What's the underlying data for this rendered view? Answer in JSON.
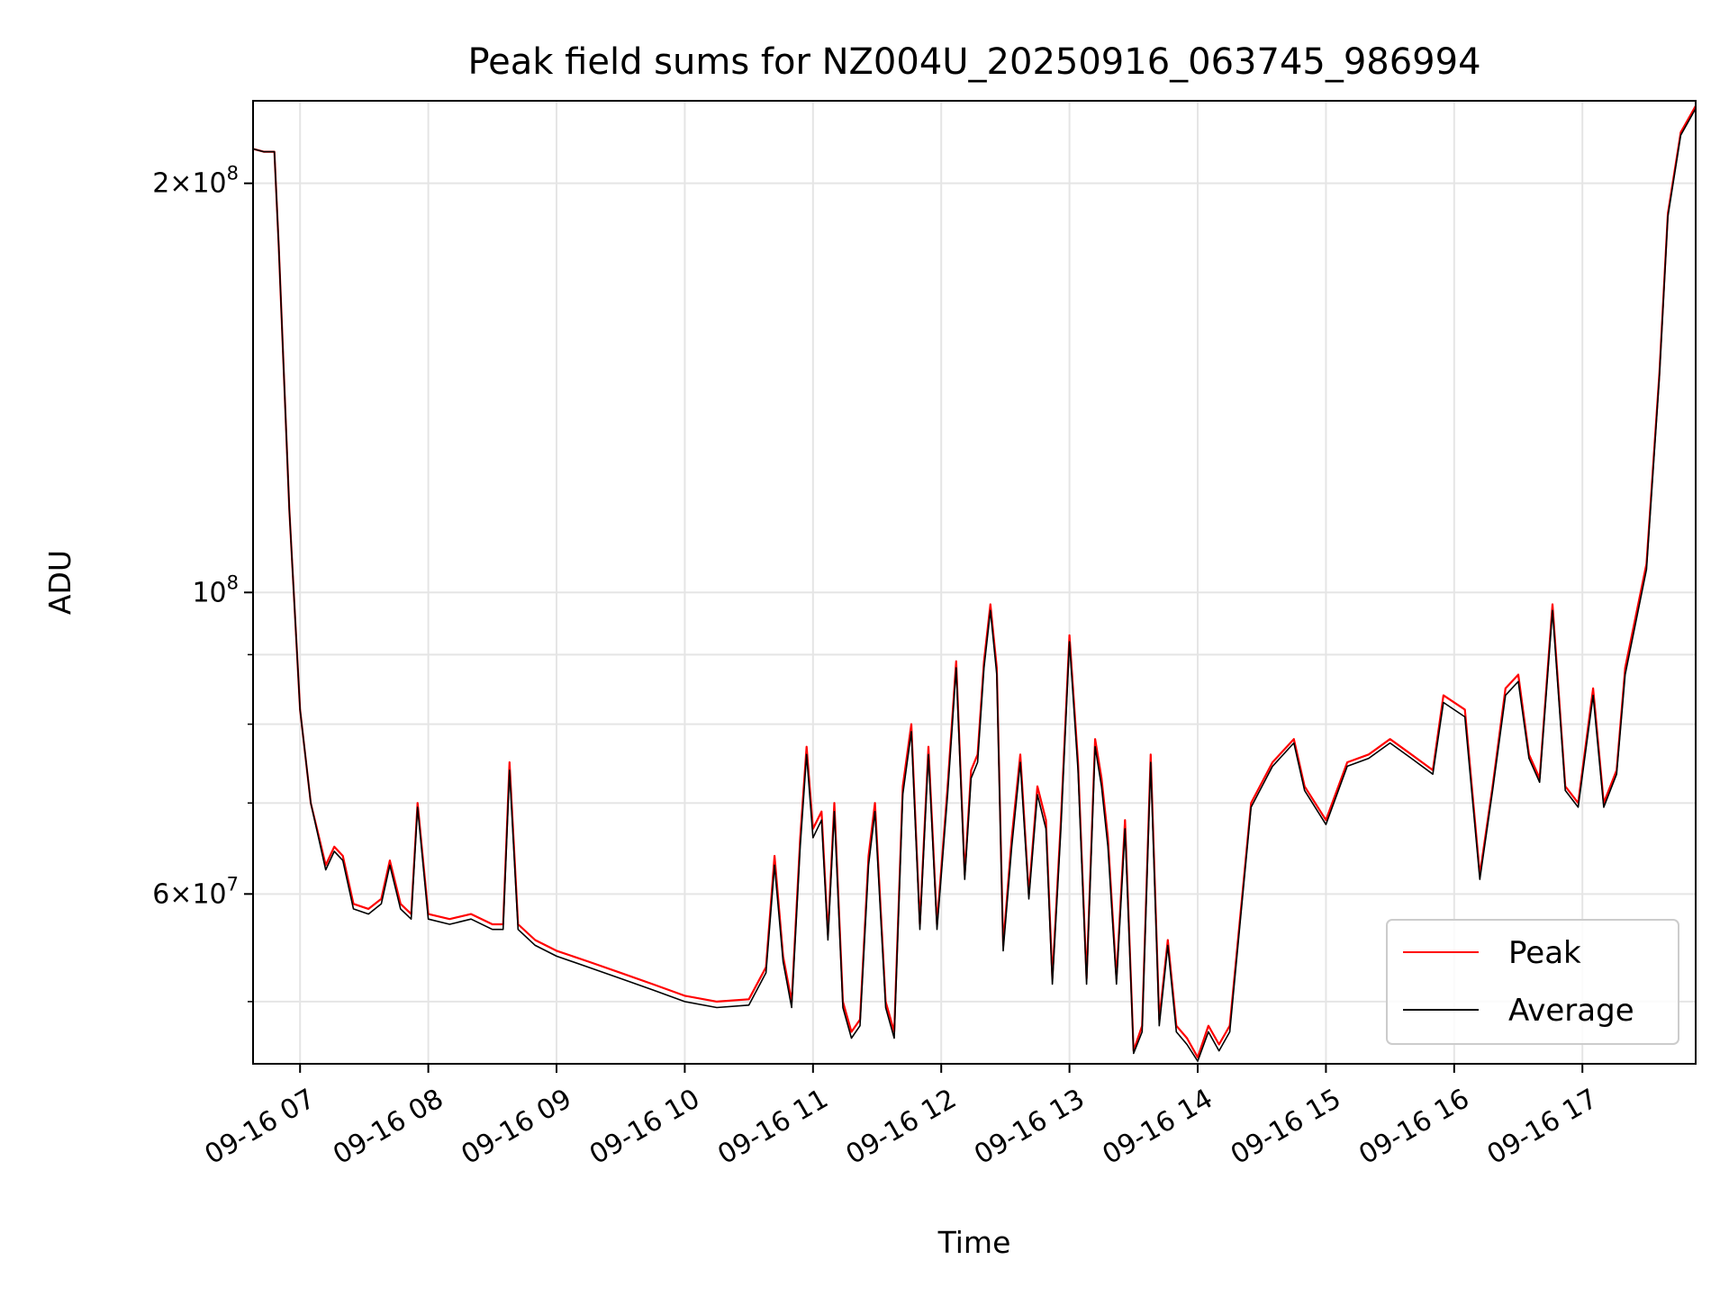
{
  "chart_data": {
    "type": "line",
    "title": "Peak field sums for NZ004U_20250916_063745_986994",
    "xlabel": "Time",
    "ylabel": "ADU",
    "y_scale": "log",
    "ylim": [
      45000000,
      230000000
    ],
    "xlim": [
      "2025-09-16 06:38",
      "2025-09-16 17:53"
    ],
    "grid": true,
    "legend_position": "lower-right",
    "x_ticks": [
      {
        "t": "2025-09-16 07:00",
        "label": "09-16 07"
      },
      {
        "t": "2025-09-16 08:00",
        "label": "09-16 08"
      },
      {
        "t": "2025-09-16 09:00",
        "label": "09-16 09"
      },
      {
        "t": "2025-09-16 10:00",
        "label": "09-16 10"
      },
      {
        "t": "2025-09-16 11:00",
        "label": "09-16 11"
      },
      {
        "t": "2025-09-16 12:00",
        "label": "09-16 12"
      },
      {
        "t": "2025-09-16 13:00",
        "label": "09-16 13"
      },
      {
        "t": "2025-09-16 14:00",
        "label": "09-16 14"
      },
      {
        "t": "2025-09-16 15:00",
        "label": "09-16 15"
      },
      {
        "t": "2025-09-16 16:00",
        "label": "09-16 16"
      },
      {
        "t": "2025-09-16 17:00",
        "label": "09-16 17"
      }
    ],
    "y_ticks_major": [
      {
        "value": 60000000,
        "mant": "6",
        "exp": "7"
      },
      {
        "value": 100000000,
        "mant": "",
        "exp": "8"
      },
      {
        "value": 200000000,
        "mant": "2",
        "exp": "8"
      }
    ],
    "y_ticks_minor": [
      50000000,
      70000000,
      80000000,
      90000000
    ],
    "series": [
      {
        "name": "Peak",
        "color": "#ff0000",
        "points": [
          [
            "06:38",
            212000000
          ],
          [
            "06:43",
            211000000
          ],
          [
            "06:48",
            211000000
          ],
          [
            "06:50",
            180000000
          ],
          [
            "06:55",
            115000000
          ],
          [
            "07:00",
            82000000
          ],
          [
            "07:05",
            70000000
          ],
          [
            "07:12",
            63000000
          ],
          [
            "07:16",
            65000000
          ],
          [
            "07:20",
            64000000
          ],
          [
            "07:25",
            59000000
          ],
          [
            "07:32",
            58500000
          ],
          [
            "07:38",
            59500000
          ],
          [
            "07:42",
            63500000
          ],
          [
            "07:47",
            59000000
          ],
          [
            "07:52",
            58000000
          ],
          [
            "07:55",
            70000000
          ],
          [
            "08:00",
            58000000
          ],
          [
            "08:10",
            57500000
          ],
          [
            "08:20",
            58000000
          ],
          [
            "08:30",
            57000000
          ],
          [
            "08:35",
            57000000
          ],
          [
            "08:38",
            75000000
          ],
          [
            "08:42",
            57000000
          ],
          [
            "08:50",
            55500000
          ],
          [
            "09:00",
            54500000
          ],
          [
            "09:15",
            53500000
          ],
          [
            "09:30",
            52500000
          ],
          [
            "09:45",
            51500000
          ],
          [
            "10:00",
            50500000
          ],
          [
            "10:15",
            50000000
          ],
          [
            "10:30",
            50200000
          ],
          [
            "10:38",
            53000000
          ],
          [
            "10:42",
            64000000
          ],
          [
            "10:46",
            54000000
          ],
          [
            "10:50",
            50000000
          ],
          [
            "10:54",
            66000000
          ],
          [
            "10:57",
            77000000
          ],
          [
            "11:00",
            67000000
          ],
          [
            "11:04",
            69000000
          ],
          [
            "11:07",
            56000000
          ],
          [
            "11:10",
            70000000
          ],
          [
            "11:14",
            50000000
          ],
          [
            "11:18",
            47500000
          ],
          [
            "11:22",
            48500000
          ],
          [
            "11:26",
            64000000
          ],
          [
            "11:29",
            70000000
          ],
          [
            "11:34",
            50000000
          ],
          [
            "11:38",
            47500000
          ],
          [
            "11:42",
            72000000
          ],
          [
            "11:46",
            80000000
          ],
          [
            "11:50",
            57000000
          ],
          [
            "11:54",
            77000000
          ],
          [
            "11:58",
            57000000
          ],
          [
            "12:03",
            72000000
          ],
          [
            "12:07",
            89000000
          ],
          [
            "12:11",
            62000000
          ],
          [
            "12:14",
            74000000
          ],
          [
            "12:17",
            76000000
          ],
          [
            "12:20",
            89000000
          ],
          [
            "12:23",
            98000000
          ],
          [
            "12:26",
            88000000
          ],
          [
            "12:29",
            55000000
          ],
          [
            "12:33",
            66000000
          ],
          [
            "12:37",
            76000000
          ],
          [
            "12:41",
            60000000
          ],
          [
            "12:45",
            72000000
          ],
          [
            "12:49",
            68000000
          ],
          [
            "12:52",
            52000000
          ],
          [
            "12:56",
            68000000
          ],
          [
            "13:00",
            93000000
          ],
          [
            "13:04",
            75000000
          ],
          [
            "13:08",
            52000000
          ],
          [
            "13:12",
            78000000
          ],
          [
            "13:15",
            73000000
          ],
          [
            "13:18",
            66000000
          ],
          [
            "13:22",
            52000000
          ],
          [
            "13:26",
            68000000
          ],
          [
            "13:30",
            46000000
          ],
          [
            "13:34",
            48000000
          ],
          [
            "13:38",
            76000000
          ],
          [
            "13:42",
            48500000
          ],
          [
            "13:46",
            55500000
          ],
          [
            "13:50",
            48000000
          ],
          [
            "13:55",
            47000000
          ],
          [
            "14:00",
            45500000
          ],
          [
            "14:05",
            48000000
          ],
          [
            "14:10",
            46500000
          ],
          [
            "14:15",
            48000000
          ],
          [
            "14:20",
            58000000
          ],
          [
            "14:25",
            70000000
          ],
          [
            "14:35",
            75000000
          ],
          [
            "14:45",
            78000000
          ],
          [
            "14:50",
            72000000
          ],
          [
            "15:00",
            68000000
          ],
          [
            "15:10",
            75000000
          ],
          [
            "15:20",
            76000000
          ],
          [
            "15:30",
            78000000
          ],
          [
            "15:40",
            76000000
          ],
          [
            "15:50",
            74000000
          ],
          [
            "15:55",
            84000000
          ],
          [
            "16:05",
            82000000
          ],
          [
            "16:12",
            62000000
          ],
          [
            "16:18",
            72000000
          ],
          [
            "16:24",
            85000000
          ],
          [
            "16:30",
            87000000
          ],
          [
            "16:35",
            76000000
          ],
          [
            "16:40",
            73000000
          ],
          [
            "16:46",
            98000000
          ],
          [
            "16:52",
            72000000
          ],
          [
            "16:58",
            70000000
          ],
          [
            "17:05",
            85000000
          ],
          [
            "17:10",
            70000000
          ],
          [
            "17:16",
            74000000
          ],
          [
            "17:20",
            88000000
          ],
          [
            "17:30",
            105000000
          ],
          [
            "17:36",
            145000000
          ],
          [
            "17:40",
            190000000
          ],
          [
            "17:46",
            218000000
          ],
          [
            "17:53",
            228000000
          ]
        ]
      },
      {
        "name": "Average",
        "color": "#000000",
        "points": [
          [
            "06:38",
            212000000
          ],
          [
            "06:43",
            211000000
          ],
          [
            "06:48",
            211000000
          ],
          [
            "06:50",
            180000000
          ],
          [
            "06:55",
            115000000
          ],
          [
            "07:00",
            82000000
          ],
          [
            "07:05",
            70000000
          ],
          [
            "07:12",
            62500000
          ],
          [
            "07:16",
            64500000
          ],
          [
            "07:20",
            63500000
          ],
          [
            "07:25",
            58500000
          ],
          [
            "07:32",
            58000000
          ],
          [
            "07:38",
            59000000
          ],
          [
            "07:42",
            63000000
          ],
          [
            "07:47",
            58500000
          ],
          [
            "07:52",
            57500000
          ],
          [
            "07:55",
            69500000
          ],
          [
            "08:00",
            57500000
          ],
          [
            "08:10",
            57000000
          ],
          [
            "08:20",
            57500000
          ],
          [
            "08:30",
            56500000
          ],
          [
            "08:35",
            56500000
          ],
          [
            "08:38",
            74000000
          ],
          [
            "08:42",
            56500000
          ],
          [
            "08:50",
            55000000
          ],
          [
            "09:00",
            54000000
          ],
          [
            "09:15",
            53000000
          ],
          [
            "09:30",
            52000000
          ],
          [
            "09:45",
            51000000
          ],
          [
            "10:00",
            50000000
          ],
          [
            "10:15",
            49500000
          ],
          [
            "10:30",
            49700000
          ],
          [
            "10:38",
            52500000
          ],
          [
            "10:42",
            63000000
          ],
          [
            "10:46",
            53500000
          ],
          [
            "10:50",
            49500000
          ],
          [
            "10:54",
            65000000
          ],
          [
            "10:57",
            76000000
          ],
          [
            "11:00",
            66000000
          ],
          [
            "11:04",
            68000000
          ],
          [
            "11:07",
            55500000
          ],
          [
            "11:10",
            69000000
          ],
          [
            "11:14",
            49500000
          ],
          [
            "11:18",
            47000000
          ],
          [
            "11:22",
            48000000
          ],
          [
            "11:26",
            63000000
          ],
          [
            "11:29",
            69000000
          ],
          [
            "11:34",
            49500000
          ],
          [
            "11:38",
            47000000
          ],
          [
            "11:42",
            71000000
          ],
          [
            "11:46",
            79000000
          ],
          [
            "11:50",
            56500000
          ],
          [
            "11:54",
            76000000
          ],
          [
            "11:58",
            56500000
          ],
          [
            "12:03",
            71000000
          ],
          [
            "12:07",
            88000000
          ],
          [
            "12:11",
            61500000
          ],
          [
            "12:14",
            73000000
          ],
          [
            "12:17",
            75000000
          ],
          [
            "12:20",
            88000000
          ],
          [
            "12:23",
            97000000
          ],
          [
            "12:26",
            87000000
          ],
          [
            "12:29",
            54500000
          ],
          [
            "12:33",
            65000000
          ],
          [
            "12:37",
            75000000
          ],
          [
            "12:41",
            59500000
          ],
          [
            "12:45",
            71000000
          ],
          [
            "12:49",
            67000000
          ],
          [
            "12:52",
            51500000
          ],
          [
            "12:56",
            67000000
          ],
          [
            "13:00",
            92000000
          ],
          [
            "13:04",
            74000000
          ],
          [
            "13:08",
            51500000
          ],
          [
            "13:12",
            77000000
          ],
          [
            "13:15",
            72000000
          ],
          [
            "13:18",
            65000000
          ],
          [
            "13:22",
            51500000
          ],
          [
            "13:26",
            67000000
          ],
          [
            "13:30",
            45800000
          ],
          [
            "13:34",
            47500000
          ],
          [
            "13:38",
            75000000
          ],
          [
            "13:42",
            48000000
          ],
          [
            "13:46",
            55000000
          ],
          [
            "13:50",
            47500000
          ],
          [
            "13:55",
            46500000
          ],
          [
            "14:00",
            45200000
          ],
          [
            "14:05",
            47500000
          ],
          [
            "14:10",
            46000000
          ],
          [
            "14:15",
            47500000
          ],
          [
            "14:20",
            57500000
          ],
          [
            "14:25",
            69500000
          ],
          [
            "14:35",
            74500000
          ],
          [
            "14:45",
            77500000
          ],
          [
            "14:50",
            71500000
          ],
          [
            "15:00",
            67500000
          ],
          [
            "15:10",
            74500000
          ],
          [
            "15:20",
            75500000
          ],
          [
            "15:30",
            77500000
          ],
          [
            "15:40",
            75500000
          ],
          [
            "15:50",
            73500000
          ],
          [
            "15:55",
            83000000
          ],
          [
            "16:05",
            81000000
          ],
          [
            "16:12",
            61500000
          ],
          [
            "16:18",
            71500000
          ],
          [
            "16:24",
            84000000
          ],
          [
            "16:30",
            86000000
          ],
          [
            "16:35",
            75500000
          ],
          [
            "16:40",
            72500000
          ],
          [
            "16:46",
            97000000
          ],
          [
            "16:52",
            71500000
          ],
          [
            "16:58",
            69500000
          ],
          [
            "17:05",
            84000000
          ],
          [
            "17:10",
            69500000
          ],
          [
            "17:16",
            73500000
          ],
          [
            "17:20",
            87000000
          ],
          [
            "17:30",
            104000000
          ],
          [
            "17:36",
            144000000
          ],
          [
            "17:40",
            189000000
          ],
          [
            "17:46",
            217000000
          ],
          [
            "17:53",
            227000000
          ]
        ]
      }
    ]
  }
}
